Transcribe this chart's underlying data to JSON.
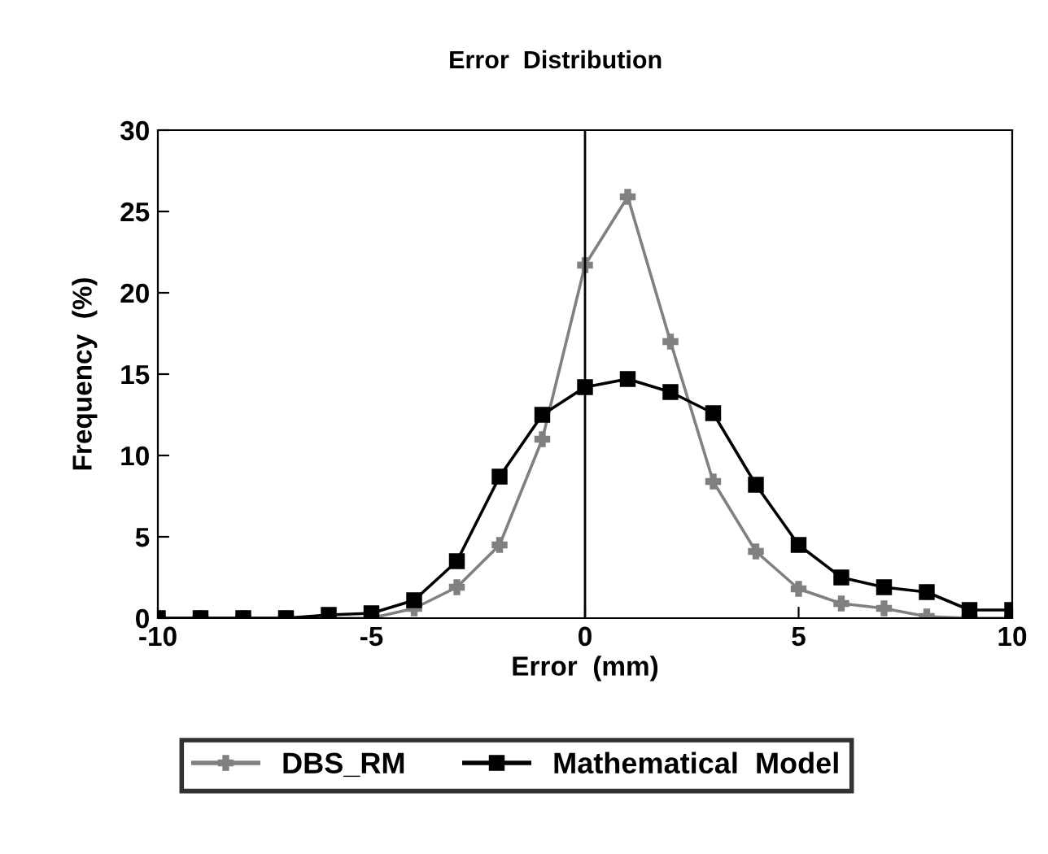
{
  "chart_data": {
    "type": "line",
    "title": "Error  Distribution",
    "xlabel": "Error  (mm)",
    "ylabel": "Frequency  (%)",
    "x": [
      -10,
      -9,
      -8,
      -7,
      -6,
      -5,
      -4,
      -3,
      -2,
      -1,
      0,
      1,
      2,
      3,
      4,
      5,
      6,
      7,
      8,
      9,
      10
    ],
    "series": [
      {
        "name": "DBS_RM",
        "color": "#808080",
        "marker": "cross",
        "values": [
          0,
          0,
          0,
          0,
          0,
          0,
          0.6,
          1.9,
          4.5,
          11,
          21.7,
          25.9,
          17,
          8.4,
          4.1,
          1.8,
          0.9,
          0.6,
          0.1,
          0,
          0
        ]
      },
      {
        "name": "Mathematical  Model",
        "color": "#000000",
        "marker": "square",
        "values": [
          0,
          0,
          0,
          0,
          0.2,
          0.3,
          1.1,
          3.5,
          8.7,
          12.5,
          14.2,
          14.7,
          13.9,
          12.6,
          8.2,
          4.5,
          2.5,
          1.9,
          1.6,
          0.5,
          0.5
        ]
      }
    ],
    "xlim": [
      -10,
      10
    ],
    "xticks": [
      -10,
      -5,
      0,
      5,
      10
    ],
    "ylim": [
      0,
      30
    ],
    "yticks": [
      0,
      5,
      10,
      15,
      20,
      25,
      30
    ],
    "ref_lines": [
      {
        "axis": "x",
        "value": 0,
        "color": "#000000"
      }
    ],
    "grid": false,
    "legend": "bottom",
    "line_style": "solid"
  }
}
